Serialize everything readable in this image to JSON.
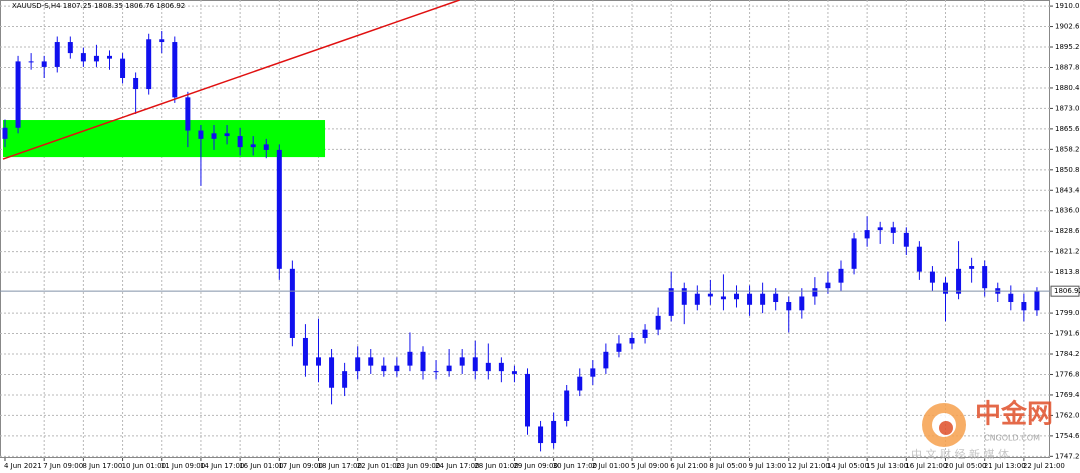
{
  "chart_data": {
    "type": "candlestick",
    "header": "XAUUSD-S,H4  1807.25 1808.35 1806.76 1806.92",
    "color": "#1010ee",
    "x_labels": [
      "4 Jun 2021",
      "7 Jun 09:00",
      "8 Jun 17:00",
      "10 Jun 01:00",
      "11 Jun 09:00",
      "14 Jun 17:00",
      "16 Jun 01:00",
      "17 Jun 09:00",
      "18 Jun 17:00",
      "22 Jun 01:00",
      "23 Jun 09:00",
      "24 Jun 17:00",
      "28 Jun 01:00",
      "29 Jun 09:00",
      "30 Jun 17:00",
      "2 Jul 01:00",
      "5 Jul 09:00",
      "6 Jul 21:00",
      "8 Jul 05:00",
      "9 Jul 13:00",
      "12 Jul 21:00",
      "14 Jul 05:00",
      "15 Jul 13:00",
      "16 Jul 21:00",
      "20 Jul 05:00",
      "21 Jul 13:00",
      "22 Jul 21:00"
    ],
    "open": [
      1862,
      1866,
      1890,
      1890,
      1888,
      1897,
      1893,
      1890,
      1892,
      1891,
      1884,
      1880,
      1898,
      1897,
      1877,
      1865,
      1862,
      1864,
      1863,
      1859,
      1860,
      1858,
      1815,
      1790,
      1780,
      1783,
      1772,
      1778,
      1783,
      1780,
      1778,
      1780,
      1785,
      1778,
      1778,
      1780,
      1783,
      1778,
      1781,
      1778,
      1777,
      1758,
      1752,
      1760,
      1771,
      1776,
      1779,
      1785,
      1788,
      1790,
      1793,
      1798,
      1808,
      1802,
      1806,
      1805,
      1804,
      1806,
      1802,
      1806,
      1803,
      1800,
      1805,
      1808,
      1810,
      1815,
      1826,
      1829,
      1830,
      1828,
      1823,
      1814,
      1810,
      1806,
      1815,
      1816,
      1808,
      1806,
      1803,
      1800
    ],
    "high": [
      1869,
      1892,
      1893,
      1892,
      1899,
      1899,
      1895,
      1896,
      1894,
      1893,
      1886,
      1900,
      1901,
      1899,
      1879,
      1867,
      1867,
      1867,
      1866,
      1863,
      1862,
      1860,
      1818,
      1795,
      1797,
      1786,
      1781,
      1787,
      1786,
      1783,
      1783,
      1792,
      1787,
      1782,
      1786,
      1786,
      1789,
      1788,
      1783,
      1780,
      1779,
      1760,
      1763,
      1773,
      1779,
      1782,
      1788,
      1791,
      1792,
      1795,
      1801,
      1814,
      1810,
      1809,
      1811,
      1813,
      1809,
      1809,
      1810,
      1808,
      1805,
      1808,
      1812,
      1814,
      1818,
      1828,
      1834,
      1832,
      1832,
      1830,
      1825,
      1816,
      1812,
      1825,
      1819,
      1818,
      1810,
      1809,
      1806,
      1808.35
    ],
    "low": [
      1859,
      1864,
      1887,
      1884,
      1886,
      1891,
      1888,
      1888,
      1887,
      1882,
      1871,
      1878,
      1893,
      1875,
      1859,
      1845,
      1858,
      1860,
      1856,
      1856,
      1855,
      1811,
      1787,
      1776,
      1774,
      1766,
      1769,
      1775,
      1777,
      1776,
      1776,
      1778,
      1775,
      1775,
      1776,
      1777,
      1775,
      1775,
      1774,
      1774,
      1755,
      1749,
      1750,
      1758,
      1769,
      1773,
      1777,
      1783,
      1786,
      1788,
      1791,
      1796,
      1795,
      1800,
      1802,
      1800,
      1801,
      1798,
      1799,
      1800,
      1792,
      1797,
      1802,
      1806,
      1807,
      1813,
      1823,
      1824,
      1824,
      1820,
      1811,
      1807,
      1796,
      1804,
      1810,
      1805,
      1803,
      1800,
      1796,
      1798
    ],
    "close": [
      1866,
      1890,
      1890,
      1888,
      1897,
      1893,
      1890,
      1892,
      1891,
      1884,
      1880,
      1898,
      1897,
      1877,
      1865,
      1862,
      1864,
      1863,
      1859,
      1860,
      1858,
      1815,
      1790,
      1780,
      1783,
      1772,
      1778,
      1783,
      1780,
      1778,
      1780,
      1785,
      1778,
      1778,
      1780,
      1783,
      1778,
      1781,
      1778,
      1777,
      1758,
      1752,
      1760,
      1771,
      1776,
      1779,
      1785,
      1788,
      1790,
      1793,
      1798,
      1808,
      1802,
      1806,
      1805,
      1804,
      1806,
      1802,
      1806,
      1803,
      1800,
      1805,
      1808,
      1810,
      1815,
      1826,
      1829,
      1830,
      1828,
      1823,
      1814,
      1810,
      1806,
      1815,
      1816,
      1808,
      1806,
      1803,
      1800,
      1806.92
    ],
    "ylim": [
      1746.6,
      1912.2
    ],
    "yticks": [
      {
        "value": 1910,
        "label": "1910.00"
      },
      {
        "value": 1902.6,
        "label": "1902.60"
      },
      {
        "value": 1895.2,
        "label": "1895.20"
      },
      {
        "value": 1887.8,
        "label": "1887.80"
      },
      {
        "value": 1880.4,
        "label": "1880.40"
      },
      {
        "value": 1873,
        "label": "1873.00"
      },
      {
        "value": 1865.6,
        "label": "1865.60"
      },
      {
        "value": 1858.2,
        "label": "1858.20"
      },
      {
        "value": 1850.8,
        "label": "1850.80"
      },
      {
        "value": 1843.4,
        "label": "1843.40"
      },
      {
        "value": 1836,
        "label": "1836.00"
      },
      {
        "value": 1828.6,
        "label": "1828.60"
      },
      {
        "value": 1821.2,
        "label": "1821.20"
      },
      {
        "value": 1813.8,
        "label": "1813.80"
      },
      {
        "value": 1799,
        "label": "1799.00"
      },
      {
        "value": 1791.6,
        "label": "1791.60"
      },
      {
        "value": 1784.2,
        "label": "1784.20"
      },
      {
        "value": 1776.8,
        "label": "1776.80"
      },
      {
        "value": 1769.4,
        "label": "1769.40"
      },
      {
        "value": 1762,
        "label": "1762.00"
      },
      {
        "value": 1754.6,
        "label": "1754.60"
      },
      {
        "value": 1747.2,
        "label": "1747.20"
      }
    ],
    "grid": true,
    "current_price": 1806.92,
    "zone": {
      "start": 0,
      "end": 24.5,
      "ylim": [
        1855.4,
        1868.8
      ],
      "color": "#00ff00"
    },
    "trendline": {
      "x": [
        0,
        34.8
      ],
      "y": [
        1854.7,
        1912.2
      ],
      "color": "#e01010"
    }
  },
  "watermark": {
    "brand": "中金网",
    "site": "CNGOLD.COM",
    "slogan": "中 文 财 经 新 媒 体"
  }
}
